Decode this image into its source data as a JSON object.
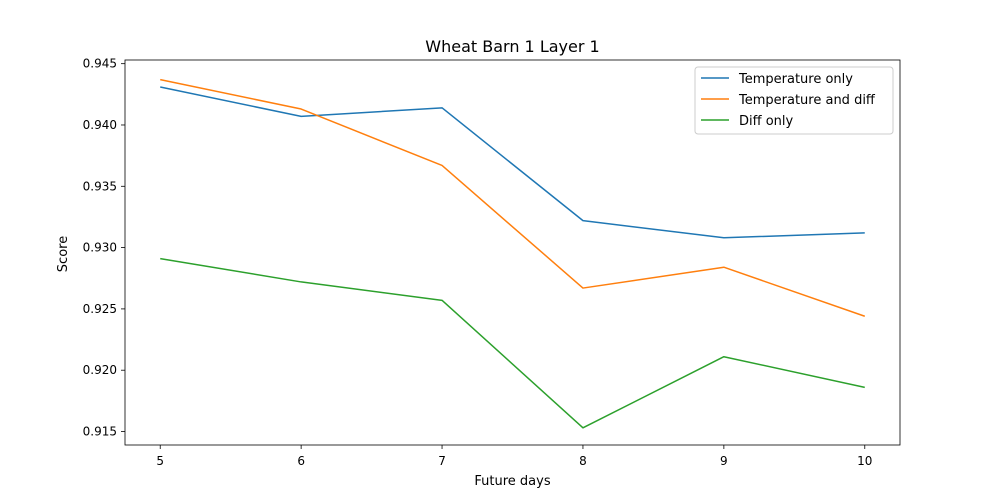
{
  "chart_data": {
    "type": "line",
    "title": "Wheat Barn 1 Layer 1",
    "xlabel": "Future days",
    "ylabel": "Score",
    "x": [
      5,
      6,
      7,
      8,
      9,
      10
    ],
    "xlim": [
      4.75,
      10.25
    ],
    "ylim": [
      0.9139,
      0.9453
    ],
    "xticks": [
      5,
      6,
      7,
      8,
      9,
      10
    ],
    "yticks": [
      0.915,
      0.92,
      0.925,
      0.93,
      0.935,
      0.94,
      0.945
    ],
    "ytick_labels": [
      "0.915",
      "0.920",
      "0.925",
      "0.930",
      "0.935",
      "0.940",
      "0.945"
    ],
    "grid": false,
    "legend_position": "top-right",
    "series": [
      {
        "name": "Temperature only",
        "color": "#1f77b4",
        "values": [
          0.9431,
          0.9407,
          0.9414,
          0.9322,
          0.9308,
          0.9312
        ]
      },
      {
        "name": "Temperature and diff",
        "color": "#ff7f0e",
        "values": [
          0.9437,
          0.9413,
          0.9367,
          0.9267,
          0.9284,
          0.9244
        ]
      },
      {
        "name": "Diff only",
        "color": "#2ca02c",
        "values": [
          0.9291,
          0.9272,
          0.9257,
          0.9153,
          0.9211,
          0.9186
        ]
      }
    ]
  }
}
